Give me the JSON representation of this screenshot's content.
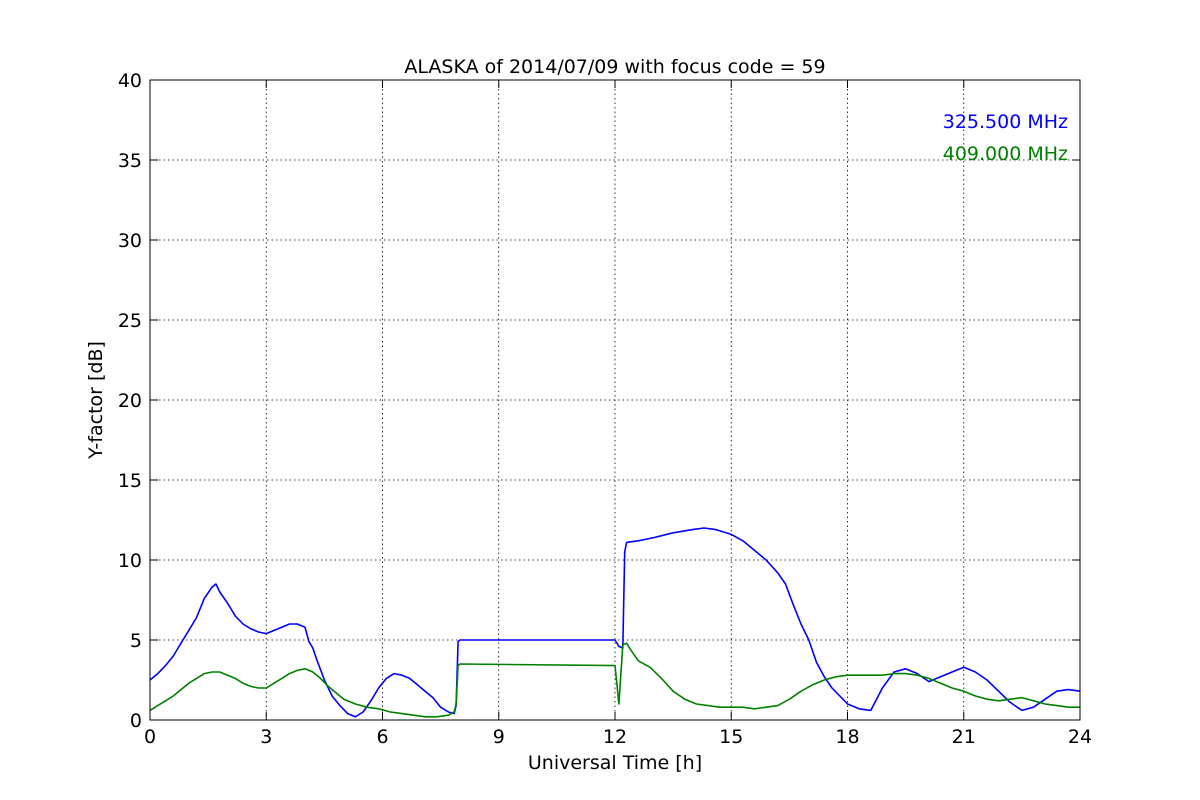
{
  "chart_data": {
    "type": "line",
    "title": "ALASKA of 2014/07/09 with focus code = 59",
    "xlabel": "Universal Time [h]",
    "ylabel": "Y-factor [dB]",
    "xlim": [
      0,
      24
    ],
    "ylim": [
      0,
      40
    ],
    "xticks": [
      0,
      3,
      6,
      9,
      12,
      15,
      18,
      21,
      24
    ],
    "yticks": [
      0,
      5,
      10,
      15,
      20,
      25,
      30,
      35,
      40
    ],
    "xtick_labels": [
      "0",
      "3",
      "6",
      "9",
      "12",
      "15",
      "18",
      "21",
      "24"
    ],
    "ytick_labels": [
      "0",
      "5",
      "10",
      "15",
      "20",
      "25",
      "30",
      "35",
      "40"
    ],
    "grid": true,
    "legend_position": "top-right",
    "series": [
      {
        "name": "325.500 MHz",
        "color": "#0000ff",
        "x": [
          0,
          0.2,
          0.4,
          0.6,
          0.8,
          1.0,
          1.2,
          1.4,
          1.6,
          1.7,
          1.8,
          2.0,
          2.2,
          2.4,
          2.6,
          2.8,
          3.0,
          3.2,
          3.4,
          3.6,
          3.8,
          4.0,
          4.1,
          4.2,
          4.3,
          4.5,
          4.7,
          4.9,
          5.1,
          5.3,
          5.5,
          5.7,
          5.9,
          6.1,
          6.3,
          6.5,
          6.7,
          6.9,
          7.1,
          7.3,
          7.5,
          7.7,
          7.85,
          7.9,
          7.95,
          8.0,
          12.0,
          12.1,
          12.2,
          12.25,
          12.3,
          12.6,
          13.0,
          13.5,
          14.0,
          14.3,
          14.6,
          15.0,
          15.3,
          15.6,
          15.9,
          16.2,
          16.4,
          16.6,
          16.8,
          17.0,
          17.2,
          17.4,
          17.6,
          17.8,
          18.0,
          18.3,
          18.6,
          18.9,
          19.2,
          19.5,
          19.8,
          20.1,
          20.4,
          20.7,
          21.0,
          21.3,
          21.6,
          21.9,
          22.2,
          22.5,
          22.8,
          23.1,
          23.4,
          23.7,
          24.0
        ],
        "values": [
          2.5,
          2.9,
          3.4,
          4.0,
          4.8,
          5.6,
          6.4,
          7.6,
          8.3,
          8.5,
          8.0,
          7.3,
          6.5,
          6.0,
          5.7,
          5.5,
          5.4,
          5.6,
          5.8,
          6.0,
          6.0,
          5.8,
          4.9,
          4.5,
          3.8,
          2.5,
          1.5,
          0.9,
          0.4,
          0.2,
          0.5,
          1.2,
          2.0,
          2.6,
          2.9,
          2.8,
          2.6,
          2.2,
          1.8,
          1.4,
          0.8,
          0.5,
          0.4,
          0.9,
          4.9,
          5.0,
          5.0,
          4.6,
          4.5,
          10.5,
          11.1,
          11.2,
          11.4,
          11.7,
          11.9,
          12.0,
          11.9,
          11.6,
          11.2,
          10.6,
          10.0,
          9.2,
          8.5,
          7.2,
          6.0,
          5.0,
          3.6,
          2.7,
          2.0,
          1.5,
          1.0,
          0.7,
          0.6,
          2.0,
          3.0,
          3.2,
          2.9,
          2.4,
          2.7,
          3.0,
          3.3,
          3.0,
          2.5,
          1.8,
          1.1,
          0.6,
          0.8,
          1.3,
          1.8,
          1.9,
          1.8
        ]
      },
      {
        "name": "409.000 MHz",
        "color": "#008000",
        "x": [
          0,
          0.2,
          0.4,
          0.6,
          0.8,
          1.0,
          1.2,
          1.4,
          1.6,
          1.8,
          2.0,
          2.2,
          2.4,
          2.6,
          2.8,
          3.0,
          3.2,
          3.4,
          3.6,
          3.8,
          4.0,
          4.2,
          4.4,
          4.6,
          4.8,
          5.0,
          5.3,
          5.6,
          5.9,
          6.2,
          6.5,
          6.8,
          7.1,
          7.4,
          7.7,
          7.85,
          7.9,
          7.95,
          8.0,
          12.0,
          12.1,
          12.2,
          12.3,
          12.4,
          12.6,
          12.9,
          13.2,
          13.5,
          13.8,
          14.1,
          14.4,
          14.7,
          15.0,
          15.3,
          15.6,
          15.9,
          16.2,
          16.5,
          16.8,
          17.1,
          17.4,
          17.7,
          18.0,
          18.3,
          18.6,
          18.9,
          19.2,
          19.5,
          19.8,
          20.1,
          20.4,
          20.7,
          21.0,
          21.3,
          21.6,
          21.9,
          22.2,
          22.5,
          22.8,
          23.1,
          23.4,
          23.7,
          24.0
        ],
        "values": [
          0.6,
          0.9,
          1.2,
          1.5,
          1.9,
          2.3,
          2.6,
          2.9,
          3.0,
          3.0,
          2.8,
          2.6,
          2.3,
          2.1,
          2.0,
          2.0,
          2.3,
          2.6,
          2.9,
          3.1,
          3.2,
          3.0,
          2.6,
          2.1,
          1.7,
          1.3,
          1.0,
          0.8,
          0.7,
          0.5,
          0.4,
          0.3,
          0.2,
          0.2,
          0.3,
          0.5,
          1.0,
          3.4,
          3.5,
          3.4,
          1.0,
          4.7,
          4.8,
          4.4,
          3.7,
          3.3,
          2.6,
          1.8,
          1.3,
          1.0,
          0.9,
          0.8,
          0.8,
          0.8,
          0.7,
          0.8,
          0.9,
          1.3,
          1.8,
          2.2,
          2.5,
          2.7,
          2.8,
          2.8,
          2.8,
          2.8,
          2.9,
          2.9,
          2.8,
          2.6,
          2.3,
          2.0,
          1.8,
          1.5,
          1.3,
          1.2,
          1.3,
          1.4,
          1.2,
          1.0,
          0.9,
          0.8,
          0.8
        ]
      }
    ]
  }
}
